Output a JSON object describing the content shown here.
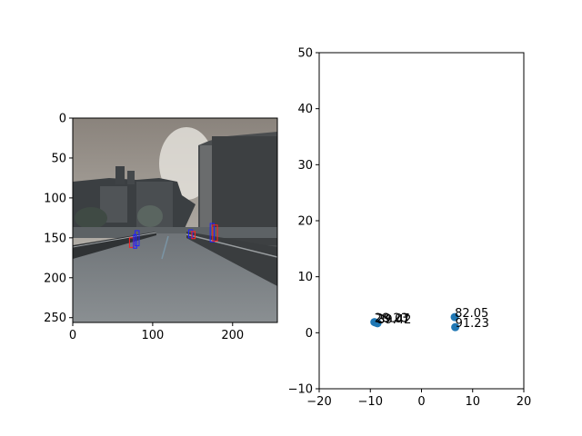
{
  "chart_data": [
    {
      "type": "image",
      "image_shape": [
        256,
        256
      ],
      "xlim": [
        0,
        256
      ],
      "ylim": [
        256,
        0
      ],
      "xticks": [
        0,
        100,
        200
      ],
      "yticks": [
        0,
        50,
        100,
        150,
        200,
        250
      ],
      "boxes": [
        {
          "x0": 71,
          "y0": 150,
          "x1": 76,
          "y1": 162,
          "color": "#ff2020"
        },
        {
          "x0": 76,
          "y0": 146,
          "x1": 80,
          "y1": 163,
          "color": "#2020ff"
        },
        {
          "x0": 78,
          "y0": 141,
          "x1": 83,
          "y1": 160,
          "color": "#2020ff"
        },
        {
          "x0": 145,
          "y0": 140,
          "x1": 150,
          "y1": 150,
          "color": "#2020ff"
        },
        {
          "x0": 149,
          "y0": 142,
          "x1": 153,
          "y1": 151,
          "color": "#ff2020"
        },
        {
          "x0": 172,
          "y0": 132,
          "x1": 177,
          "y1": 155,
          "color": "#2020ff"
        },
        {
          "x0": 175,
          "y0": 134,
          "x1": 181,
          "y1": 154,
          "color": "#ff2020"
        }
      ]
    },
    {
      "type": "scatter",
      "xlim": [
        -20,
        20
      ],
      "ylim": [
        -10,
        50
      ],
      "xticks": [
        -20,
        -10,
        0,
        10,
        20
      ],
      "yticks": [
        -10,
        0,
        10,
        20,
        30,
        40,
        50
      ],
      "marker_color": "#1f77b4",
      "points": [
        {
          "x": -9.2,
          "y": 1.9,
          "label": "28.23"
        },
        {
          "x": -8.9,
          "y": 1.8,
          "label": "29.07"
        },
        {
          "x": -8.6,
          "y": 1.7,
          "label": "39.42"
        },
        {
          "x": 6.5,
          "y": 2.8,
          "label": "82.05"
        },
        {
          "x": 6.6,
          "y": 1.0,
          "label": "91.23"
        }
      ]
    }
  ]
}
